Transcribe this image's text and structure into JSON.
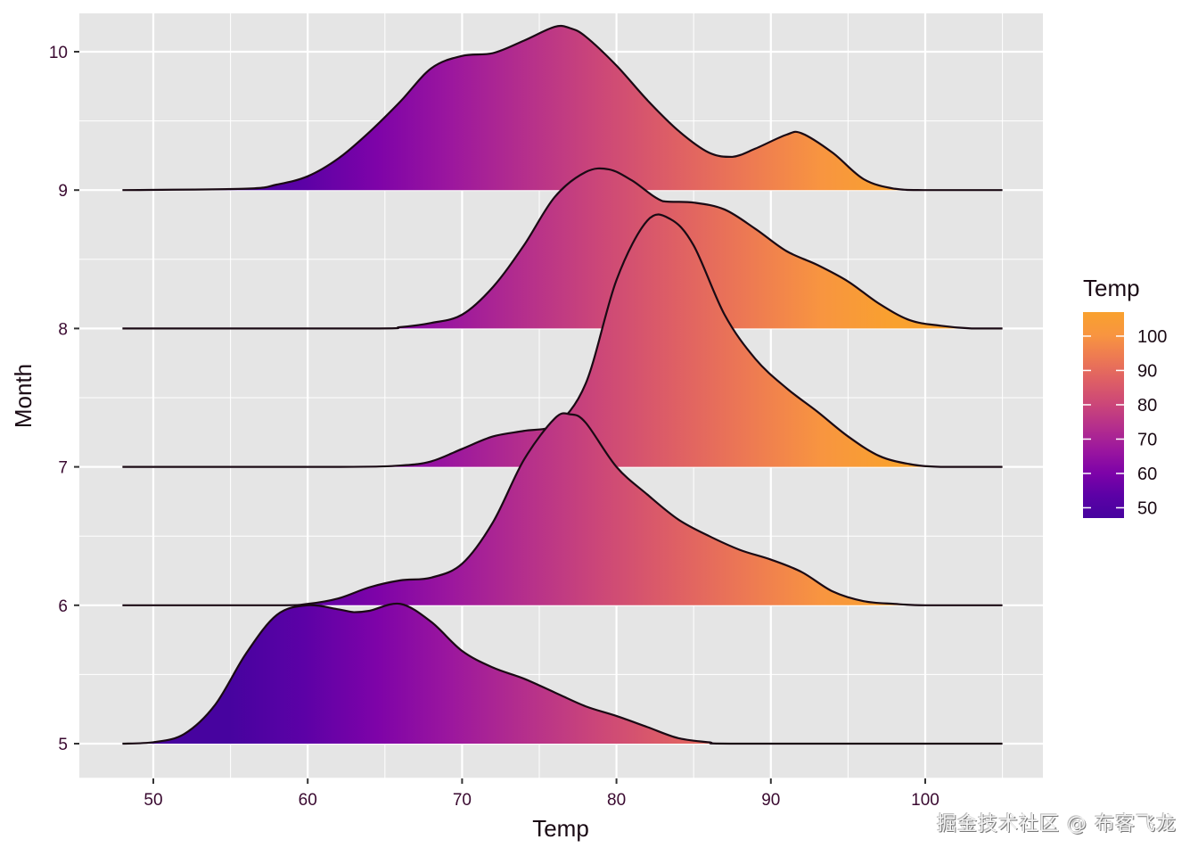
{
  "chart_data": {
    "type": "ridgeline",
    "title": "",
    "xlabel": "Temp",
    "ylabel": "Month",
    "xlim": [
      45,
      107.5
    ],
    "x_ticks": [
      50,
      60,
      70,
      80,
      90,
      100
    ],
    "x_tick_labels": [
      "50",
      "60",
      "70",
      "80",
      "90",
      "100"
    ],
    "y_categories": [
      5,
      6,
      7,
      8,
      9,
      10
    ],
    "y_tick_labels": [
      "5",
      "6",
      "7",
      "8",
      "9",
      "10"
    ],
    "grid": true,
    "density_range": [
      48,
      105
    ],
    "series": [
      {
        "name": "5",
        "x": [
          48,
          50,
          52,
          54,
          56,
          58,
          60,
          62,
          63,
          64,
          66,
          68,
          70,
          72,
          74,
          76,
          78,
          80,
          82,
          84,
          86,
          88,
          105
        ],
        "density": [
          0,
          0.01,
          0.07,
          0.28,
          0.65,
          0.93,
          1.0,
          0.97,
          0.95,
          0.96,
          1.01,
          0.88,
          0.67,
          0.55,
          0.47,
          0.37,
          0.27,
          0.2,
          0.12,
          0.04,
          0.01,
          0,
          0
        ]
      },
      {
        "name": "6",
        "x": [
          48,
          58,
          60,
          62,
          64,
          66,
          68,
          70,
          72,
          74,
          76,
          77,
          78,
          80,
          82,
          84,
          86,
          88,
          90,
          92,
          94,
          96,
          98,
          100,
          105
        ],
        "density": [
          0,
          0,
          0.01,
          0.05,
          0.13,
          0.18,
          0.2,
          0.3,
          0.6,
          1.05,
          1.35,
          1.38,
          1.32,
          1.0,
          0.8,
          0.62,
          0.5,
          0.4,
          0.33,
          0.24,
          0.1,
          0.03,
          0.01,
          0,
          0
        ]
      },
      {
        "name": "7",
        "x": [
          48,
          62,
          66,
          68,
          70,
          72,
          74,
          76,
          78,
          80,
          82,
          83.5,
          85,
          87,
          89,
          91,
          93,
          95,
          97,
          99,
          101,
          105
        ],
        "density": [
          0,
          0,
          0.01,
          0.04,
          0.13,
          0.22,
          0.26,
          0.3,
          0.6,
          1.35,
          1.78,
          1.79,
          1.6,
          1.1,
          0.78,
          0.57,
          0.4,
          0.22,
          0.08,
          0.02,
          0,
          0
        ]
      },
      {
        "name": "8",
        "x": [
          48,
          64,
          66,
          68,
          70,
          72,
          74,
          76,
          78,
          79.5,
          81,
          83,
          85,
          87,
          89,
          91,
          93,
          95,
          97,
          99,
          101,
          103,
          105
        ],
        "density": [
          0,
          0,
          0.01,
          0.04,
          0.1,
          0.3,
          0.6,
          0.95,
          1.13,
          1.15,
          1.07,
          0.92,
          0.91,
          0.86,
          0.72,
          0.56,
          0.46,
          0.34,
          0.18,
          0.06,
          0.02,
          0,
          0
        ]
      },
      {
        "name": "9",
        "x": [
          48,
          56,
          58,
          60,
          62,
          64,
          66,
          68,
          70,
          72,
          74,
          76,
          77,
          78,
          80,
          82,
          84,
          86,
          87.5,
          89,
          91,
          92,
          94,
          96,
          98,
          100,
          105
        ],
        "density": [
          0,
          0.01,
          0.04,
          0.1,
          0.23,
          0.42,
          0.64,
          0.88,
          0.97,
          0.99,
          1.08,
          1.18,
          1.17,
          1.11,
          0.9,
          0.65,
          0.43,
          0.27,
          0.24,
          0.3,
          0.4,
          0.41,
          0.27,
          0.08,
          0.01,
          0,
          0
        ]
      }
    ],
    "fill": {
      "mapped_to": "Temp",
      "palette": "plasma",
      "limits": [
        48,
        105
      ],
      "stops": [
        "#47039f",
        "#5c01a6",
        "#7e03a8",
        "#9c179e",
        "#b52f8c",
        "#cc4778",
        "#de5f65",
        "#ed7953",
        "#f89540",
        "#f9a12e"
      ]
    },
    "legend": {
      "title": "Temp",
      "placement": "right",
      "labels": [
        "100",
        "90",
        "80",
        "70",
        "60",
        "50"
      ],
      "values": [
        100,
        90,
        80,
        70,
        60,
        50
      ]
    },
    "colors": {
      "panel_background": "#e5e5e5",
      "grid_major": "#ffffff",
      "outline": "#1a0a14"
    }
  },
  "watermark": "掘金技术社区 @ 布客飞龙"
}
